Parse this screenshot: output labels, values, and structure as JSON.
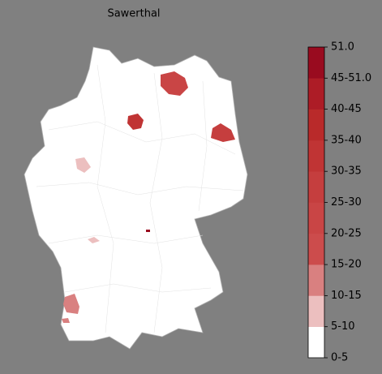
{
  "title": "Sawerthal",
  "colorbar": {
    "labels": [
      "0-5",
      "5-10",
      "10-15",
      "15-20",
      "20-25",
      "25-30",
      "30-35",
      "35-40",
      "40-45",
      "45-51.0",
      "51.0"
    ],
    "colors": [
      "#ffffff",
      "#ecbfbf",
      "#d98080",
      "#cc4c4c",
      "#c94545",
      "#c53e3e",
      "#c03434",
      "#b92a2a",
      "#ad1c26",
      "#990b1f"
    ]
  }
}
